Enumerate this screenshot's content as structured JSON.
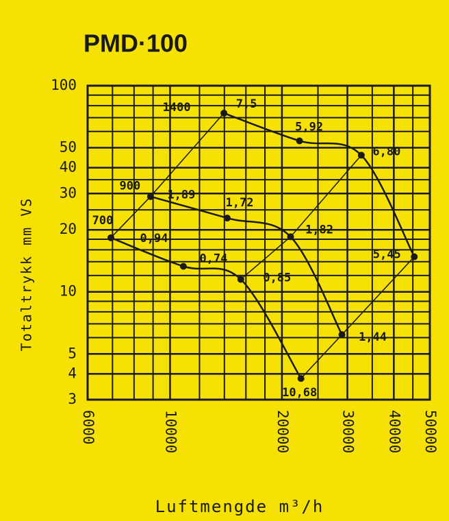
{
  "chart_data": {
    "type": "line",
    "title": "PMD·100",
    "x_label": "Luftmengde m³/h",
    "y_label": "Totaltrykk mm VS",
    "log_x": true,
    "log_y": true,
    "xlim": [
      6000,
      50000
    ],
    "ylim": [
      3,
      100
    ],
    "xticks": [
      6000,
      10000,
      20000,
      30000,
      40000,
      50000
    ],
    "yticks": [
      3,
      4,
      5,
      10,
      20,
      30,
      40,
      50,
      100
    ],
    "xminor": [
      7000,
      8000,
      9000,
      12000,
      14000,
      16000,
      18000,
      25000,
      35000,
      45000
    ],
    "yminor": [
      6,
      7,
      8,
      9,
      12,
      14,
      16,
      18,
      25,
      35,
      60,
      70,
      80,
      90
    ],
    "grid": true,
    "series": [
      {
        "color": "#1a1a1a",
        "x": [
          6930,
          10860,
          15500,
          22500
        ],
        "values": [
          18.3,
          13.3,
          11.5,
          3.8
        ],
        "point_labels": [
          [
            "700",
            "0,94"
          ],
          [
            "0,74"
          ],
          [
            "0,85"
          ],
          [
            "10,68"
          ]
        ]
      },
      {
        "color": "#1a1a1a",
        "x": [
          8860,
          14250,
          21100,
          29000
        ],
        "values": [
          29,
          22.8,
          18.5,
          6.2
        ],
        "point_labels": [
          [
            "900",
            "1,89"
          ],
          [
            "1,72"
          ],
          [
            "1,82"
          ],
          [
            "1,44"
          ]
        ]
      },
      {
        "color": "#1a1a1a",
        "x": [
          13960,
          22300,
          32700,
          45400
        ],
        "values": [
          73.6,
          54,
          46,
          14.8
        ],
        "point_labels": [
          [
            "1400",
            "7,5"
          ],
          [
            "5,92"
          ],
          [
            "6,80"
          ],
          [
            "5,45"
          ]
        ]
      }
    ]
  }
}
